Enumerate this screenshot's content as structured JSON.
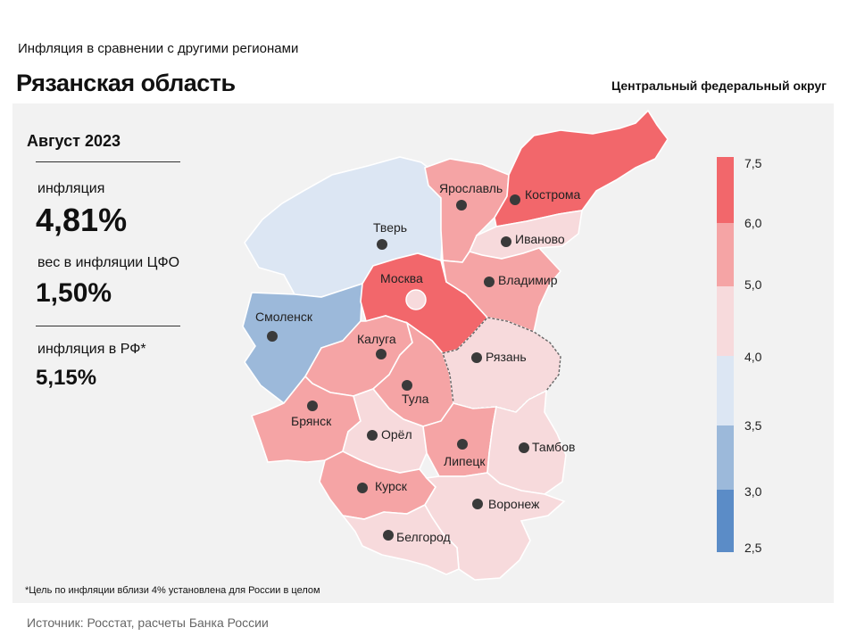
{
  "header": {
    "subtitle": "Инфляция  в сравнении  с другими  регионами",
    "title": "Рязанская область",
    "district": "Центральный федеральный округ"
  },
  "stats": {
    "period": "Август 2023",
    "inflation_label": "инфляция",
    "inflation_value": "4,81%",
    "weight_label": "вес в инфляции  ЦФО",
    "weight_value": "1,50%",
    "rf_label": "инфляция  в РФ*",
    "rf_value": "5,15%"
  },
  "footnote": "*Цель по инфляции вблизи 4% установлена для России в целом",
  "source": "Источник: Росстат, расчеты Банка России",
  "colors": {
    "c_6_75": "#f2676b",
    "c_5_6": "#f5a4a5",
    "c_4_5": "#f7dadc",
    "c_35_4": "#dce6f3",
    "c_3_35": "#9cb9da",
    "c_25_3": "#5b8cc7",
    "panel": "#f2f2f2"
  },
  "legend": {
    "ticks": [
      "7,5",
      "6,0",
      "5,0",
      "4,0",
      "3,5",
      "3,0",
      "2,5"
    ]
  },
  "regions": [
    {
      "name": "Тверь",
      "label": "Тверь",
      "bin": "3.5–4.0"
    },
    {
      "name": "Смоленск",
      "label": "Смоленск",
      "bin": "3.0–3.5"
    },
    {
      "name": "Москва",
      "label": "Москва",
      "bin": "6.0–7.5"
    },
    {
      "name": "Ярославль",
      "label": "Ярославль",
      "bin": "5.0–6.0"
    },
    {
      "name": "Кострома",
      "label": "Кострома",
      "bin": "6.0–7.5"
    },
    {
      "name": "Иваново",
      "label": "Иваново",
      "bin": "4.0–5.0"
    },
    {
      "name": "Владимир",
      "label": "Владимир",
      "bin": "5.0–6.0"
    },
    {
      "name": "Калуга",
      "label": "Калуга",
      "bin": "5.0–6.0"
    },
    {
      "name": "Тула",
      "label": "Тула",
      "bin": "5.0–6.0"
    },
    {
      "name": "Рязань",
      "label": "Рязань",
      "bin": "4.0–5.0"
    },
    {
      "name": "Брянск",
      "label": "Брянск",
      "bin": "5.0–6.0"
    },
    {
      "name": "Орёл",
      "label": "Орёл",
      "bin": "4.0–5.0"
    },
    {
      "name": "Липецк",
      "label": "Липецк",
      "bin": "5.0–6.0"
    },
    {
      "name": "Тамбов",
      "label": "Тамбов",
      "bin": "4.0–5.0"
    },
    {
      "name": "Курск",
      "label": "Курск",
      "bin": "5.0–6.0"
    },
    {
      "name": "Воронеж",
      "label": "Воронеж",
      "bin": "4.0–5.0"
    },
    {
      "name": "Белгород",
      "label": "Белгород",
      "bin": "4.0–5.0"
    }
  ]
}
